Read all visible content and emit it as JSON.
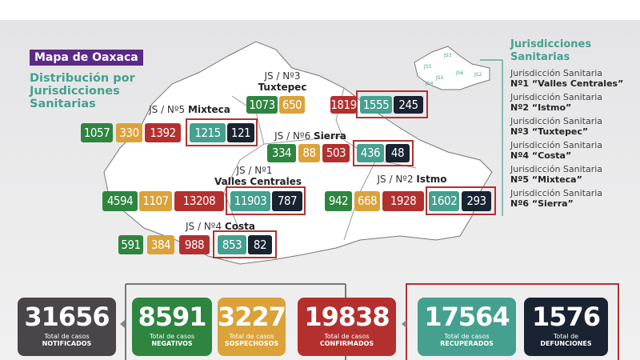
{
  "map": {
    "title": "Mapa de Oaxaca",
    "subtitle": "Distribución por Jurisdicciones Sanitarias",
    "clusters": [
      {
        "prefix": "JS / Nº3",
        "name": "Tuxtepec",
        "values": [
          "1073",
          "650",
          "1819",
          "1555",
          "245"
        ]
      },
      {
        "prefix": "JS / Nº5",
        "name": "Mixteca",
        "values": [
          "1057",
          "330",
          "1392",
          "1215",
          "121"
        ]
      },
      {
        "prefix": "JS / Nº6",
        "name": "Sierra",
        "values": [
          "334",
          "88",
          "503",
          "436",
          "48"
        ]
      },
      {
        "prefix": "JS / Nº1",
        "name": "Valles Centrales",
        "values": [
          "4594",
          "1107",
          "13208",
          "11903",
          "787"
        ]
      },
      {
        "prefix": "JS / Nº2",
        "name": "Istmo",
        "values": [
          "942",
          "668",
          "1928",
          "1602",
          "293"
        ]
      },
      {
        "prefix": "JS / Nº4",
        "name": "Costa",
        "values": [
          "591",
          "384",
          "988",
          "853",
          "82"
        ]
      }
    ],
    "mini_labels": [
      "JS5",
      "JS3",
      "JS1",
      "JS6",
      "JS2",
      "JS4"
    ]
  },
  "legend": {
    "title": "Jurisdicciones Sanitarias",
    "items": [
      {
        "line1": "Jurisdicción Sanitaria",
        "line2": "Nº1 “Valles Centrales”"
      },
      {
        "line1": "Jurisdicción Sanitaria",
        "line2": "Nº2 “Istmo”"
      },
      {
        "line1": "Jurisdicción Sanitaria",
        "line2": "Nº3 “Tuxtepec”"
      },
      {
        "line1": "Jurisdicción Sanitaria",
        "line2": "Nº4 “Costa”"
      },
      {
        "line1": "Jurisdicción Sanitaria",
        "line2": "Nº5 “Mixteca”"
      },
      {
        "line1": "Jurisdicción Sanitaria",
        "line2": "Nº6 “Sierra”"
      }
    ]
  },
  "totals": [
    {
      "value": "31656",
      "caption": "Total de casos",
      "label": "NOTIFICADOS",
      "color": "#4a4549"
    },
    {
      "value": "8591",
      "caption": "Total de casos",
      "label": "NEGATIVOS",
      "color": "#2e8540"
    },
    {
      "value": "3227",
      "caption": "Total de casos",
      "label": "SOSPECHOSOS",
      "color": "#dba23a"
    },
    {
      "value": "19838",
      "caption": "Total de casos",
      "label": "CONFIRMADOS",
      "color": "#b3302f"
    },
    {
      "value": "17564",
      "caption": "Total de casos",
      "label": "RECUPERADOS",
      "color": "#45a08f"
    },
    {
      "value": "1576",
      "caption": "Total de",
      "label": "DEFUNCIONES",
      "color": "#1a2332"
    }
  ]
}
